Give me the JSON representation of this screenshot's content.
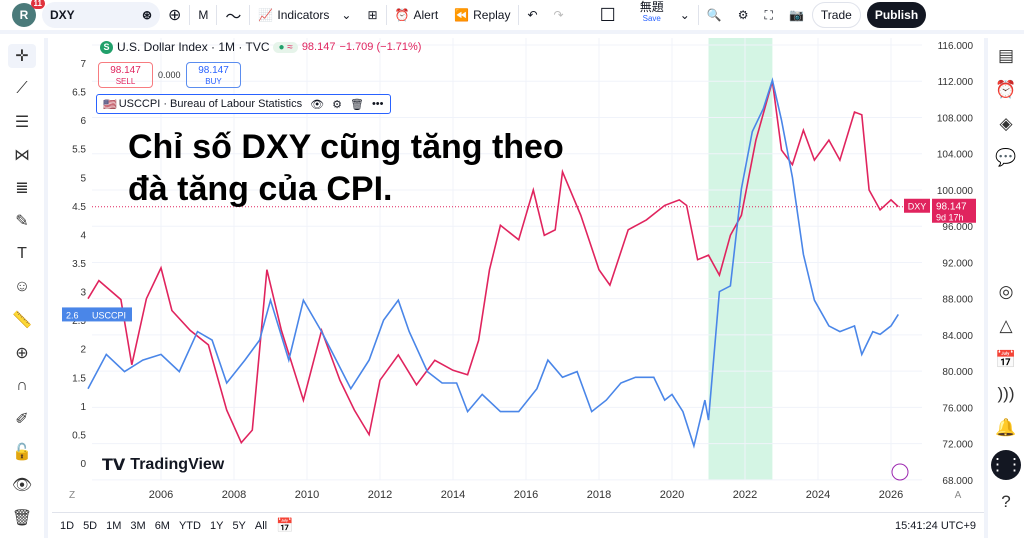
{
  "topbar": {
    "avatar": "R",
    "notifications": "11",
    "symbol": "DXY",
    "interval": "M",
    "indicators": "Indicators",
    "alert": "Alert",
    "replay": "Replay",
    "layout_name": "無題",
    "save": "Save",
    "trade": "Trade",
    "publish": "Publish"
  },
  "legend": {
    "title": "U.S. Dollar Index · 1M · TVC",
    "price": "98.147",
    "change": "−1.709 (−1.71%)",
    "sell_price": "98.147",
    "sell": "SELL",
    "spread": "0.000",
    "buy_price": "98.147",
    "buy": "BUY",
    "indicator": "USCCPI · Bureau of Labour Statistics"
  },
  "annotation": {
    "line1": "Chỉ số DXY cũng tăng theo",
    "line2": "đà tăng của CPI."
  },
  "logo": "TradingView",
  "labels": {
    "dxy_tag": "DXY",
    "dxy_price": "98.147",
    "dxy_countdown": "9d 17h",
    "cpi_value": "2.6",
    "cpi_tag": "USCCPI",
    "z": "Z",
    "a": "A"
  },
  "bottombar": {
    "ranges": [
      "1D",
      "5D",
      "1M",
      "3M",
      "6M",
      "YTD",
      "1Y",
      "5Y",
      "All"
    ],
    "time": "15:41:24 UTC+9"
  },
  "colors": {
    "dxy": "#e0245e",
    "cpi": "#4a86e8",
    "highlight": "#d4f5e4"
  },
  "chart_data": {
    "type": "line",
    "x_ticks": [
      "2006",
      "2008",
      "2010",
      "2012",
      "2014",
      "2016",
      "2018",
      "2020",
      "2022",
      "2024",
      "2026"
    ],
    "xlim": [
      2004,
      2026.9
    ],
    "left_axis": {
      "ticks": [
        "7",
        "6.5",
        "6",
        "5.5",
        "5",
        "4.5",
        "4",
        "3.5",
        "3",
        "2.5",
        "2",
        "1.5",
        "1",
        "0.5",
        "0"
      ],
      "ylim": [
        0,
        7
      ]
    },
    "right_axis": {
      "ticks": [
        "116.000",
        "112.000",
        "108.000",
        "104.000",
        "100.000",
        "96.000",
        "92.000",
        "88.000",
        "84.000",
        "80.000",
        "76.000",
        "72.000",
        "68.000"
      ],
      "ylim": [
        68,
        116
      ]
    },
    "highlight_range": [
      2021.0,
      2022.75
    ],
    "series": [
      {
        "name": "DXY",
        "axis": "right",
        "x": [
          2004.0,
          2004.3,
          2004.9,
          2005.2,
          2005.6,
          2006.0,
          2006.3,
          2006.8,
          2007.3,
          2007.8,
          2008.2,
          2008.5,
          2008.9,
          2009.3,
          2009.9,
          2010.4,
          2010.9,
          2011.3,
          2011.7,
          2012.0,
          2012.5,
          2013.0,
          2013.5,
          2014.0,
          2014.4,
          2014.7,
          2015.0,
          2015.3,
          2015.8,
          2016.2,
          2016.5,
          2016.8,
          2017.0,
          2017.5,
          2018.0,
          2018.3,
          2018.8,
          2019.3,
          2019.8,
          2020.2,
          2020.4,
          2020.7,
          2021.0,
          2021.3,
          2021.6,
          2021.9,
          2022.3,
          2022.75,
          2023.0,
          2023.3,
          2023.6,
          2023.9,
          2024.3,
          2024.6,
          2025.0,
          2025.2,
          2025.4,
          2025.7,
          2026.0,
          2026.2
        ],
        "y": [
          88,
          90,
          87.9,
          80.7,
          88,
          91.4,
          86.7,
          84.5,
          82.9,
          75.7,
          72.1,
          73.5,
          91.2,
          84.5,
          76.8,
          84.5,
          79,
          75.7,
          73,
          79,
          81.8,
          78.5,
          81.2,
          80.1,
          79.6,
          83.4,
          91.2,
          96.1,
          94.5,
          100,
          95,
          95.6,
          102,
          97.2,
          91.2,
          89.5,
          95.6,
          96.7,
          98.3,
          98.9,
          98.3,
          92.3,
          92.8,
          90.6,
          95,
          97.2,
          105.5,
          112,
          104.4,
          102.8,
          106.6,
          103.3,
          105.5,
          103.3,
          108.6,
          108.3,
          100,
          97.8,
          98.9,
          98.147
        ]
      },
      {
        "name": "USCCPI",
        "axis": "left",
        "x": [
          2004.0,
          2004.5,
          2005.0,
          2005.5,
          2006.0,
          2006.5,
          2007.0,
          2007.4,
          2007.8,
          2008.3,
          2008.7,
          2009.0,
          2009.5,
          2009.9,
          2010.4,
          2010.8,
          2011.2,
          2011.7,
          2012.1,
          2012.5,
          2012.8,
          2013.3,
          2013.7,
          2014.1,
          2014.4,
          2014.8,
          2015.3,
          2015.8,
          2016.3,
          2016.6,
          2017.0,
          2017.4,
          2017.8,
          2018.2,
          2018.6,
          2019.0,
          2019.5,
          2019.8,
          2020.0,
          2020.3,
          2020.6,
          2020.9,
          2021.0,
          2021.3,
          2021.6,
          2021.9,
          2022.2,
          2022.5,
          2022.75,
          2023.0,
          2023.3,
          2023.6,
          2023.9,
          2024.3,
          2024.6,
          2025.0,
          2025.2,
          2025.5,
          2025.7,
          2026.0,
          2026.2
        ],
        "y": [
          1.3,
          1.9,
          1.6,
          1.8,
          1.9,
          1.6,
          2.3,
          2.15,
          1.4,
          1.8,
          2.15,
          2.85,
          1.8,
          2.85,
          2.3,
          1.8,
          1.3,
          1.8,
          2.5,
          2.85,
          2.3,
          1.6,
          1.4,
          1.4,
          0.9,
          1.2,
          0.9,
          0.9,
          1.3,
          1.8,
          1.5,
          1.6,
          0.9,
          1.1,
          1.4,
          1.5,
          1.5,
          1.1,
          1.2,
          0.9,
          0.3,
          1.1,
          0.75,
          3.0,
          3.1,
          4.8,
          5.8,
          6.2,
          6.7,
          6.0,
          5.0,
          3.65,
          2.85,
          2.4,
          2.3,
          2.4,
          1.9,
          2.3,
          2.25,
          2.4,
          2.6
        ]
      }
    ]
  }
}
